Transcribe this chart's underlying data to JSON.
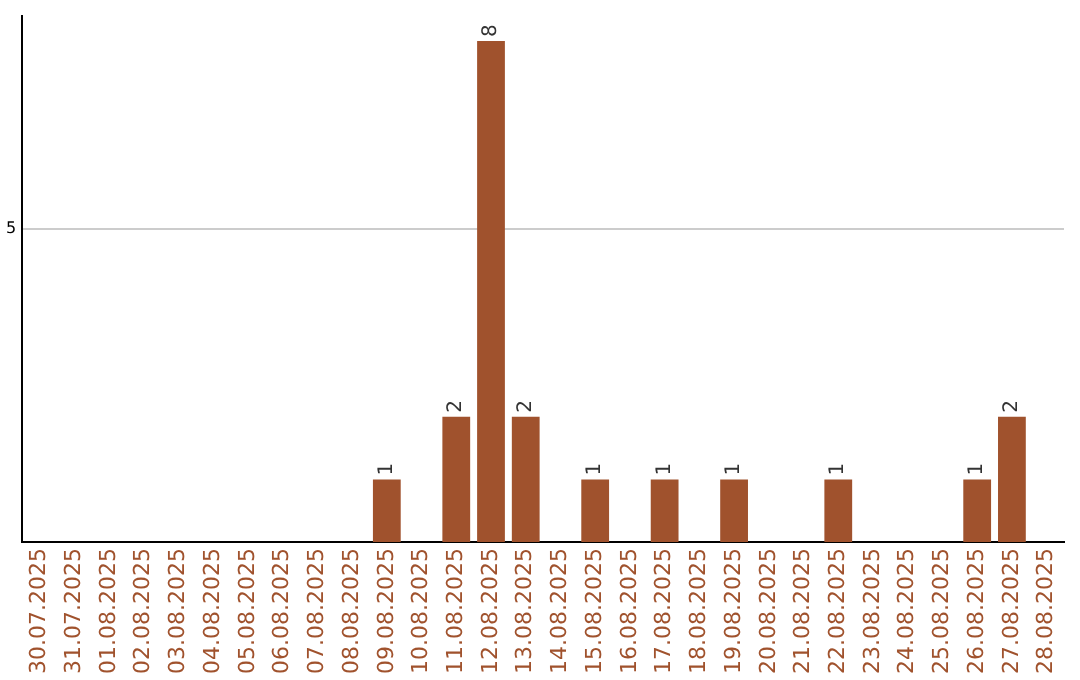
{
  "chart_data": {
    "type": "bar",
    "categories": [
      "30.07.2025",
      "31.07.2025",
      "01.08.2025",
      "02.08.2025",
      "03.08.2025",
      "04.08.2025",
      "05.08.2025",
      "06.08.2025",
      "07.08.2025",
      "08.08.2025",
      "09.08.2025",
      "10.08.2025",
      "11.08.2025",
      "12.08.2025",
      "13.08.2025",
      "14.08.2025",
      "15.08.2025",
      "16.08.2025",
      "17.08.2025",
      "18.08.2025",
      "19.08.2025",
      "20.08.2025",
      "21.08.2025",
      "22.08.2025",
      "23.08.2025",
      "24.08.2025",
      "25.08.2025",
      "26.08.2025",
      "27.08.2025",
      "28.08.2025"
    ],
    "values": [
      0,
      0,
      0,
      0,
      0,
      0,
      0,
      0,
      0,
      0,
      1,
      0,
      2,
      8,
      2,
      0,
      1,
      0,
      1,
      0,
      1,
      0,
      0,
      1,
      0,
      0,
      0,
      1,
      2,
      0
    ],
    "value_labels": [
      null,
      null,
      null,
      null,
      null,
      null,
      null,
      null,
      null,
      null,
      "1",
      null,
      "2",
      "8",
      "2",
      null,
      "1",
      null,
      "1",
      null,
      "1",
      null,
      null,
      "1",
      null,
      null,
      null,
      "1",
      "2",
      null
    ],
    "color": "#a0522d",
    "ylim": [
      0,
      8.4
    ],
    "yticks": [
      5
    ],
    "grid": "y",
    "legend": false
  }
}
